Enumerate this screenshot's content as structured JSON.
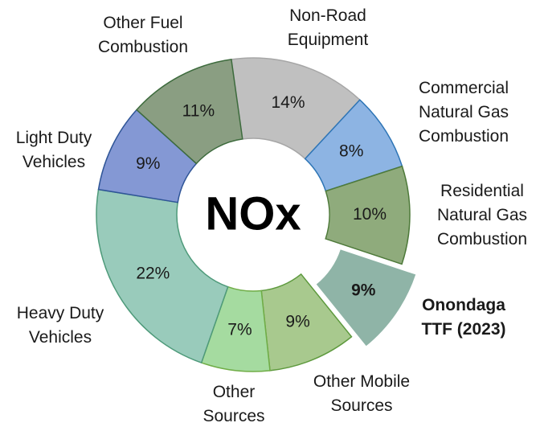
{
  "chart_data": {
    "type": "donut",
    "center_label": "NOx",
    "categories": [
      "Non-Road\nEquipment",
      "Commercial\nNatural Gas\nCombustion",
      "Residential\nNatural Gas\nCombustion",
      "Onondaga\nTTF (2023)",
      "Other Mobile\nSources",
      "Other\nSources",
      "Heavy Duty\nVehicles",
      "Light Duty\nVehicles",
      "Other Fuel\nCombustion"
    ],
    "values": [
      14,
      8,
      10,
      9,
      9,
      7,
      22,
      9,
      11
    ],
    "value_labels": [
      "14%",
      "8%",
      "10%",
      "9%",
      "9%",
      "7%",
      "22%",
      "9%",
      "11%"
    ],
    "colors": [
      "#c0c0c0",
      "#8db4e3",
      "#8fab7c",
      "#8fb4a7",
      "#a8c98e",
      "#a5dba0",
      "#99cbbb",
      "#8498d4",
      "#8a9e82"
    ],
    "edge_colors": [
      "#a6a6a6",
      "#2e75b6",
      "#4e7a3a",
      "#ffffff",
      "#5e9a3e",
      "#70ad47",
      "#4e9a7a",
      "#2f5597",
      "#3d6b3d"
    ],
    "exploded": [
      3
    ],
    "highlighted": [
      3
    ]
  }
}
